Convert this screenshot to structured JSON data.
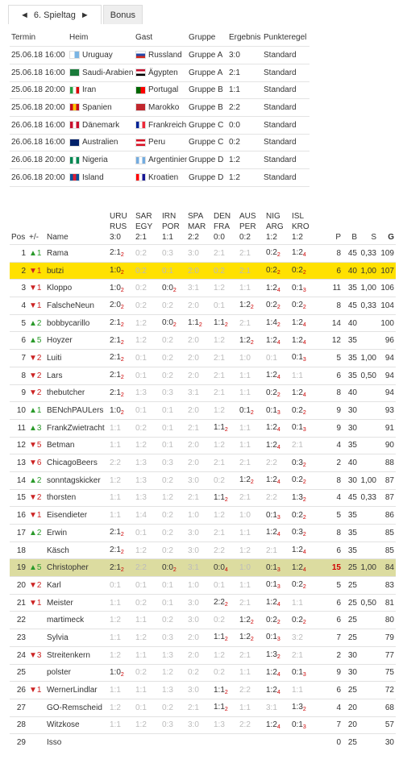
{
  "nav": {
    "prev": "◄",
    "label": "6. Spieltag",
    "next": "►",
    "bonus": "Bonus"
  },
  "matches": {
    "columns": [
      "Termin",
      "Heim",
      "Gast",
      "Gruppe",
      "Ergebnis",
      "Punkteregel"
    ],
    "rows": [
      [
        "25.06.18 16:00",
        "Uruguay",
        "Russland",
        "Gruppe A",
        "3:0",
        "Standard"
      ],
      [
        "25.06.18 16:00",
        "Saudi-Arabien",
        "Ägypten",
        "Gruppe A",
        "2:1",
        "Standard"
      ],
      [
        "25.06.18 20:00",
        "Iran",
        "Portugal",
        "Gruppe B",
        "1:1",
        "Standard"
      ],
      [
        "25.06.18 20:00",
        "Spanien",
        "Marokko",
        "Gruppe B",
        "2:2",
        "Standard"
      ],
      [
        "26.06.18 16:00",
        "Dänemark",
        "Frankreich",
        "Gruppe C",
        "0:0",
        "Standard"
      ],
      [
        "26.06.18 16:00",
        "Australien",
        "Peru",
        "Gruppe C",
        "0:2",
        "Standard"
      ],
      [
        "26.06.18 20:00",
        "Nigeria",
        "Argentinien",
        "Gruppe D",
        "1:2",
        "Standard"
      ],
      [
        "26.06.18 20:00",
        "Island",
        "Kroatien",
        "Gruppe D",
        "1:2",
        "Standard"
      ]
    ]
  },
  "ranking": {
    "columns": {
      "pos": "Pos",
      "trend": "+/-",
      "name": "Name",
      "p": "P",
      "b": "B",
      "s": "S",
      "g": "G"
    },
    "games": [
      [
        "URU",
        "RUS",
        "3:0"
      ],
      [
        "SAR",
        "EGY",
        "2:1"
      ],
      [
        "IRN",
        "POR",
        "1:1"
      ],
      [
        "SPA",
        "MAR",
        "2:2"
      ],
      [
        "DEN",
        "FRA",
        "0:0"
      ],
      [
        "AUS",
        "PER",
        "0:2"
      ],
      [
        "NIG",
        "ARG",
        "1:2"
      ],
      [
        "ISL",
        "KRO",
        "1:2"
      ]
    ],
    "rows": [
      {
        "pos": 1,
        "trend": "▲1",
        "name": "Rama",
        "tips": [
          [
            "2:1",
            "2"
          ],
          [
            "0:2"
          ],
          [
            "0:3"
          ],
          [
            "3:0"
          ],
          [
            "2:1"
          ],
          [
            "2:1"
          ],
          [
            "0:2",
            "2"
          ],
          [
            "1:2",
            "4"
          ]
        ],
        "p": 8,
        "b": 45,
        "s": "0,33",
        "g": 109
      },
      {
        "pos": 2,
        "trend": "▼1",
        "name": "butzi",
        "highlight": "#ffe100",
        "tips": [
          [
            "1:0",
            "2"
          ],
          [
            "0:2"
          ],
          [
            "0:1"
          ],
          [
            "2:0"
          ],
          [
            "0:2"
          ],
          [
            "2:1"
          ],
          [
            "0:2",
            "2"
          ],
          [
            "0:2",
            "2"
          ]
        ],
        "p": 6,
        "b": 40,
        "s": "1,00",
        "g": 107
      },
      {
        "pos": 3,
        "trend": "▼1",
        "name": "Kloppo",
        "tips": [
          [
            "1:0",
            "2"
          ],
          [
            "0:2"
          ],
          [
            "0:0",
            "2"
          ],
          [
            "3:1"
          ],
          [
            "1:2"
          ],
          [
            "1:1"
          ],
          [
            "1:2",
            "4"
          ],
          [
            "0:1",
            "3"
          ]
        ],
        "p": 11,
        "b": 35,
        "s": "1,00",
        "g": 106
      },
      {
        "pos": 4,
        "trend": "▼1",
        "name": "FalscheNeun",
        "tips": [
          [
            "2:0",
            "2"
          ],
          [
            "0:2"
          ],
          [
            "0:2"
          ],
          [
            "2:0"
          ],
          [
            "0:1"
          ],
          [
            "1:2",
            "2"
          ],
          [
            "0:2",
            "2"
          ],
          [
            "0:2",
            "2"
          ]
        ],
        "p": 8,
        "b": 45,
        "s": "0,33",
        "g": 104
      },
      {
        "pos": 5,
        "trend": "▲2",
        "name": "bobbycarillo",
        "tips": [
          [
            "2:1",
            "2"
          ],
          [
            "1:2"
          ],
          [
            "0:0",
            "2"
          ],
          [
            "1:1",
            "2"
          ],
          [
            "1:1",
            "2"
          ],
          [
            "2:1"
          ],
          [
            "1:4",
            "2"
          ],
          [
            "1:2",
            "4"
          ]
        ],
        "p": 14,
        "b": 40,
        "s": null,
        "g": 100
      },
      {
        "pos": 6,
        "trend": "▲5",
        "name": "Hoyzer",
        "tips": [
          [
            "2:1",
            "2"
          ],
          [
            "1:2"
          ],
          [
            "0:2"
          ],
          [
            "2:0"
          ],
          [
            "1:2"
          ],
          [
            "1:2",
            "2"
          ],
          [
            "1:2",
            "4"
          ],
          [
            "1:2",
            "4"
          ]
        ],
        "p": 12,
        "b": 35,
        "s": null,
        "g": 96
      },
      {
        "pos": 7,
        "trend": "▼2",
        "name": "Luiti",
        "tips": [
          [
            "2:1",
            "2"
          ],
          [
            "0:1"
          ],
          [
            "0:2"
          ],
          [
            "2:0"
          ],
          [
            "2:1"
          ],
          [
            "1:0"
          ],
          [
            "0:1"
          ],
          [
            "0:1",
            "3"
          ]
        ],
        "p": 5,
        "b": 35,
        "s": "1,00",
        "g": 94
      },
      {
        "pos": 8,
        "trend": "▼2",
        "name": "Lars",
        "tips": [
          [
            "2:1",
            "2"
          ],
          [
            "0:1"
          ],
          [
            "0:2"
          ],
          [
            "2:0"
          ],
          [
            "2:1"
          ],
          [
            "1:1"
          ],
          [
            "1:2",
            "4"
          ],
          [
            "1:1"
          ]
        ],
        "p": 6,
        "b": 35,
        "s": "0,50",
        "g": 94
      },
      {
        "pos": 9,
        "trend": "▼2",
        "name": "thebutcher",
        "tips": [
          [
            "2:1",
            "2"
          ],
          [
            "1:3"
          ],
          [
            "0:3"
          ],
          [
            "3:1"
          ],
          [
            "2:1"
          ],
          [
            "1:1"
          ],
          [
            "0:2",
            "2"
          ],
          [
            "1:2",
            "4"
          ]
        ],
        "p": 8,
        "b": 40,
        "s": null,
        "g": 94
      },
      {
        "pos": 10,
        "trend": "▲1",
        "name": "BENchPAULers",
        "tips": [
          [
            "1:0",
            "2"
          ],
          [
            "0:1"
          ],
          [
            "0:1"
          ],
          [
            "2:0"
          ],
          [
            "1:2"
          ],
          [
            "0:1",
            "2"
          ],
          [
            "0:1",
            "3"
          ],
          [
            "0:2",
            "2"
          ]
        ],
        "p": 9,
        "b": 30,
        "s": null,
        "g": 93
      },
      {
        "pos": 11,
        "trend": "▲3",
        "name": "FrankZwietracht",
        "tips": [
          [
            "1:1"
          ],
          [
            "0:2"
          ],
          [
            "0:1"
          ],
          [
            "2:1"
          ],
          [
            "1:1",
            "2"
          ],
          [
            "1:1"
          ],
          [
            "1:2",
            "4"
          ],
          [
            "0:1",
            "3"
          ]
        ],
        "p": 9,
        "b": 30,
        "s": null,
        "g": 91
      },
      {
        "pos": 12,
        "trend": "▼5",
        "name": "Betman",
        "tips": [
          [
            "1:1"
          ],
          [
            "1:2"
          ],
          [
            "0:1"
          ],
          [
            "2:0"
          ],
          [
            "1:2"
          ],
          [
            "1:1"
          ],
          [
            "1:2",
            "4"
          ],
          [
            "2:1"
          ]
        ],
        "p": 4,
        "b": 35,
        "s": null,
        "g": 90
      },
      {
        "pos": 13,
        "trend": "▼6",
        "name": "ChicagoBeers",
        "tips": [
          [
            "2:2"
          ],
          [
            "1:3"
          ],
          [
            "0:3"
          ],
          [
            "2:0"
          ],
          [
            "2:1"
          ],
          [
            "2:1"
          ],
          [
            "2:2"
          ],
          [
            "0:3",
            "2"
          ]
        ],
        "p": 2,
        "b": 40,
        "s": null,
        "g": 88
      },
      {
        "pos": 14,
        "trend": "▲2",
        "name": "sonntagskicker",
        "tips": [
          [
            "1:2"
          ],
          [
            "1:3"
          ],
          [
            "0:2"
          ],
          [
            "3:0"
          ],
          [
            "0:2"
          ],
          [
            "1:2",
            "2"
          ],
          [
            "1:2",
            "4"
          ],
          [
            "0:2",
            "2"
          ]
        ],
        "p": 8,
        "b": 30,
        "s": "1,00",
        "g": 87
      },
      {
        "pos": 15,
        "trend": "▼2",
        "name": "thorsten",
        "tips": [
          [
            "1:1"
          ],
          [
            "1:3"
          ],
          [
            "1:2"
          ],
          [
            "2:1"
          ],
          [
            "1:1",
            "2"
          ],
          [
            "2:1"
          ],
          [
            "2:2"
          ],
          [
            "1:3",
            "2"
          ]
        ],
        "p": 4,
        "b": 45,
        "s": "0,33",
        "g": 87
      },
      {
        "pos": 16,
        "trend": "▼1",
        "name": "Eisendieter",
        "tips": [
          [
            "1:1"
          ],
          [
            "1:4"
          ],
          [
            "0:2"
          ],
          [
            "1:0"
          ],
          [
            "1:2"
          ],
          [
            "1:0"
          ],
          [
            "0:1",
            "3"
          ],
          [
            "0:2",
            "2"
          ]
        ],
        "p": 5,
        "b": 35,
        "s": null,
        "g": 86
      },
      {
        "pos": 17,
        "trend": "▲2",
        "name": "Erwin",
        "tips": [
          [
            "2:1",
            "2"
          ],
          [
            "0:1"
          ],
          [
            "0:2"
          ],
          [
            "3:0"
          ],
          [
            "2:1"
          ],
          [
            "1:1"
          ],
          [
            "1:2",
            "4"
          ],
          [
            "0:3",
            "2"
          ]
        ],
        "p": 8,
        "b": 35,
        "s": null,
        "g": 85
      },
      {
        "pos": 18,
        "trend": null,
        "name": "Käsch",
        "tips": [
          [
            "2:1",
            "2"
          ],
          [
            "1:2"
          ],
          [
            "0:2"
          ],
          [
            "3:0"
          ],
          [
            "2:2"
          ],
          [
            "1:2"
          ],
          [
            "2:1"
          ],
          [
            "1:2",
            "4"
          ]
        ],
        "p": 6,
        "b": 35,
        "s": null,
        "g": 85
      },
      {
        "pos": 19,
        "trend": "▲5",
        "name": "Christopher",
        "highlight": "#dcdca0",
        "p_color": "#d00000",
        "tips": [
          [
            "2:1",
            "2"
          ],
          [
            "2:2"
          ],
          [
            "0:0",
            "2"
          ],
          [
            "3:1"
          ],
          [
            "0:0",
            "4"
          ],
          [
            "1:0"
          ],
          [
            "0:1",
            "3"
          ],
          [
            "1:2",
            "4"
          ]
        ],
        "p": 15,
        "b": 25,
        "s": "1,00",
        "g": 84
      },
      {
        "pos": 20,
        "trend": "▼2",
        "name": "Karl",
        "tips": [
          [
            "0:1"
          ],
          [
            "0:1"
          ],
          [
            "0:1"
          ],
          [
            "1:0"
          ],
          [
            "0:1"
          ],
          [
            "1:1"
          ],
          [
            "0:1",
            "3"
          ],
          [
            "0:2",
            "2"
          ]
        ],
        "p": 5,
        "b": 25,
        "s": null,
        "g": 83
      },
      {
        "pos": 21,
        "trend": "▼1",
        "name": "Meister",
        "tips": [
          [
            "1:1"
          ],
          [
            "0:2"
          ],
          [
            "0:1"
          ],
          [
            "3:0"
          ],
          [
            "2:2",
            "2"
          ],
          [
            "2:1"
          ],
          [
            "1:2",
            "4"
          ],
          [
            "1:1"
          ]
        ],
        "p": 6,
        "b": 25,
        "s": "0,50",
        "g": 81
      },
      {
        "pos": 22,
        "trend": null,
        "name": "martimeck",
        "tips": [
          [
            "1:2"
          ],
          [
            "1:1"
          ],
          [
            "0:2"
          ],
          [
            "3:0"
          ],
          [
            "0:2"
          ],
          [
            "1:2",
            "2"
          ],
          [
            "0:2",
            "2"
          ],
          [
            "0:2",
            "2"
          ]
        ],
        "p": 6,
        "b": 25,
        "s": null,
        "g": 80
      },
      {
        "pos": 23,
        "trend": null,
        "name": "Sylvia",
        "tips": [
          [
            "1:1"
          ],
          [
            "1:2"
          ],
          [
            "0:3"
          ],
          [
            "2:0"
          ],
          [
            "1:1",
            "2"
          ],
          [
            "1:2",
            "2"
          ],
          [
            "0:1",
            "3"
          ],
          [
            "3:2"
          ]
        ],
        "p": 7,
        "b": 25,
        "s": null,
        "g": 79
      },
      {
        "pos": 24,
        "trend": "▼3",
        "name": "Streitenkern",
        "tips": [
          [
            "1:2"
          ],
          [
            "1:1"
          ],
          [
            "1:3"
          ],
          [
            "2:0"
          ],
          [
            "1:2"
          ],
          [
            "2:1"
          ],
          [
            "1:3",
            "2"
          ],
          [
            "2:1"
          ]
        ],
        "p": 2,
        "b": 30,
        "s": null,
        "g": 77
      },
      {
        "pos": 25,
        "trend": null,
        "name": "polster",
        "tips": [
          [
            "1:0",
            "2"
          ],
          [
            "0:2"
          ],
          [
            "1:2"
          ],
          [
            "0:2"
          ],
          [
            "0:2"
          ],
          [
            "1:1"
          ],
          [
            "1:2",
            "4"
          ],
          [
            "0:1",
            "3"
          ]
        ],
        "p": 9,
        "b": 30,
        "s": null,
        "g": 75
      },
      {
        "pos": 26,
        "trend": "▼1",
        "name": "WernerLindlar",
        "tips": [
          [
            "1:1"
          ],
          [
            "1:1"
          ],
          [
            "1:3"
          ],
          [
            "3:0"
          ],
          [
            "1:1",
            "2"
          ],
          [
            "2:2"
          ],
          [
            "1:2",
            "4"
          ],
          [
            "1:1"
          ]
        ],
        "p": 6,
        "b": 25,
        "s": null,
        "g": 72
      },
      {
        "pos": 27,
        "trend": null,
        "name": "GO-Remscheid",
        "tips": [
          [
            "1:2"
          ],
          [
            "0:1"
          ],
          [
            "0:2"
          ],
          [
            "2:1"
          ],
          [
            "1:1",
            "2"
          ],
          [
            "1:1"
          ],
          [
            "3:1"
          ],
          [
            "1:3",
            "2"
          ]
        ],
        "p": 4,
        "b": 20,
        "s": null,
        "g": 68
      },
      {
        "pos": 28,
        "trend": null,
        "name": "Witzkose",
        "tips": [
          [
            "1:1"
          ],
          [
            "1:2"
          ],
          [
            "0:3"
          ],
          [
            "3:0"
          ],
          [
            "1:3"
          ],
          [
            "2:2"
          ],
          [
            "1:2",
            "4"
          ],
          [
            "0:1",
            "3"
          ]
        ],
        "p": 7,
        "b": 20,
        "s": null,
        "g": 57
      },
      {
        "pos": 29,
        "trend": null,
        "name": "Isso",
        "tips": [],
        "p": 0,
        "b": 25,
        "s": null,
        "g": 30
      }
    ]
  }
}
